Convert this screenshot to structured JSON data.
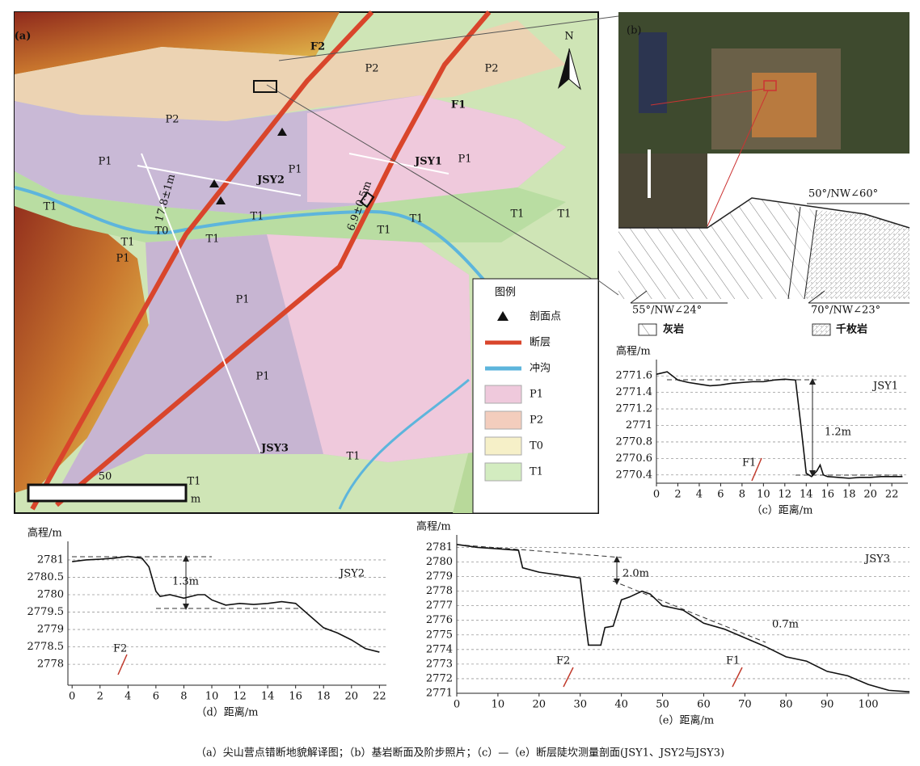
{
  "map": {
    "labels": [
      "(a)",
      "F2",
      "F1",
      "P2",
      "P2",
      "P2",
      "P1",
      "P1",
      "P1",
      "JSY2",
      "JSY1",
      "17.8±1m",
      "6.9±0.5m",
      "T1",
      "T1",
      "T1",
      "T1",
      "T0",
      "P1",
      "T1",
      "T1",
      "T1",
      "T1",
      "P1",
      "P1",
      "JSY3",
      "T1",
      "T1",
      "50",
      "m",
      "N"
    ],
    "legend": {
      "title": "图例",
      "items": [
        "剖面点",
        "断层",
        "冲沟",
        "P1",
        "P2",
        "T0",
        "T1"
      ]
    }
  },
  "photo": {
    "panel_label": "(b)",
    "attitudes": [
      "50°/NW∠60°",
      "55°/NW∠24°",
      "70°/NW∠23°"
    ],
    "rocks": [
      "灰岩",
      "千枚岩"
    ]
  },
  "chart_data": [
    {
      "type": "line",
      "y_label": "高程/m",
      "x_label": "（c）距离/m",
      "x": [
        0,
        1,
        2,
        3,
        4,
        5,
        6,
        7,
        8,
        9,
        10,
        11,
        12,
        13,
        13.5,
        14,
        14.5,
        15,
        15.3,
        15.6,
        16,
        17,
        18,
        19,
        20,
        21,
        22,
        23
      ],
      "series": [
        {
          "name": "JSY1",
          "color": "#111111",
          "values": [
            2771.62,
            2771.65,
            2771.55,
            2771.52,
            2771.5,
            2771.48,
            2771.49,
            2771.51,
            2771.52,
            2771.53,
            2771.53,
            2771.55,
            2771.56,
            2771.55,
            2771.0,
            2770.42,
            2770.38,
            2770.45,
            2770.52,
            2770.4,
            2770.38,
            2770.37,
            2770.36,
            2770.37,
            2770.37,
            2770.38,
            2770.38,
            2770.38
          ]
        }
      ],
      "xlim": [
        0,
        23.5
      ],
      "ylim": [
        2770.3,
        2771.7
      ],
      "xticks": [
        0,
        2,
        4,
        6,
        8,
        10,
        12,
        14,
        16,
        18,
        20,
        22
      ],
      "yticks": [
        2770.4,
        2770.6,
        2770.8,
        2771,
        2771.2,
        2771.4,
        2771.6
      ],
      "grid": true,
      "annotations": [
        "1.2m",
        "F1"
      ]
    },
    {
      "type": "line",
      "y_label": "高程/m",
      "x_label": "（d）距离/m",
      "x": [
        0,
        1,
        2,
        3,
        4,
        5,
        5.5,
        6,
        6.3,
        7,
        7.5,
        8,
        9,
        9.5,
        10,
        11,
        12,
        13,
        14,
        15,
        16,
        17,
        18,
        19,
        20,
        21,
        22
      ],
      "series": [
        {
          "name": "JSY2",
          "color": "#111111",
          "values": [
            2780.95,
            2781,
            2781.02,
            2781.05,
            2781.1,
            2781.05,
            2780.8,
            2780.1,
            2779.95,
            2780,
            2779.95,
            2779.9,
            2780,
            2780,
            2779.85,
            2779.7,
            2779.75,
            2779.72,
            2779.75,
            2779.8,
            2779.75,
            2779.4,
            2779.05,
            2778.9,
            2778.7,
            2778.45,
            2778.35
          ]
        }
      ],
      "xlim": [
        -0.3,
        22.5
      ],
      "ylim": [
        2777.4,
        2781.3
      ],
      "xticks": [
        0,
        2,
        4,
        6,
        8,
        10,
        12,
        14,
        16,
        18,
        20,
        22
      ],
      "yticks": [
        2778,
        2778.5,
        2779,
        2779.5,
        2780,
        2780.5,
        2781
      ],
      "grid": true,
      "annotations": [
        "1.3m",
        "F2"
      ]
    },
    {
      "type": "line",
      "y_label": "高程/m",
      "x_label": "（e）距离/m",
      "x": [
        0,
        5,
        10,
        15,
        16,
        20,
        25,
        30,
        31,
        32,
        35,
        36,
        38,
        40,
        42,
        45,
        47,
        50,
        55,
        60,
        65,
        70,
        75,
        80,
        85,
        90,
        95,
        100,
        105,
        110
      ],
      "series": [
        {
          "name": "JSY3",
          "color": "#111111",
          "values": [
            2781.2,
            2781,
            2780.9,
            2780.8,
            2779.6,
            2779.3,
            2779.1,
            2778.9,
            2776.5,
            2774.3,
            2774.3,
            2775.5,
            2775.6,
            2777.4,
            2777.6,
            2778,
            2777.8,
            2777,
            2776.7,
            2775.8,
            2775.4,
            2774.8,
            2774.2,
            2773.5,
            2773.2,
            2772.5,
            2772.2,
            2771.6,
            2771.2,
            2771.1
          ]
        }
      ],
      "xlim": [
        0,
        110
      ],
      "ylim": [
        2771,
        2781.3
      ],
      "xticks": [
        0,
        10,
        20,
        30,
        40,
        50,
        60,
        70,
        80,
        90,
        100
      ],
      "yticks": [
        2771,
        2772,
        2773,
        2774,
        2775,
        2776,
        2777,
        2778,
        2779,
        2780,
        2781
      ],
      "grid": true,
      "annotations": [
        "2.0m",
        "0.7m",
        "F2",
        "F1"
      ]
    }
  ],
  "caption": "（a）尖山营点错断地貌解译图；（b）基岩断面及阶步照片；（c）—（e）断层陡坎测量剖面(JSY1、JSY2与JSY3)"
}
